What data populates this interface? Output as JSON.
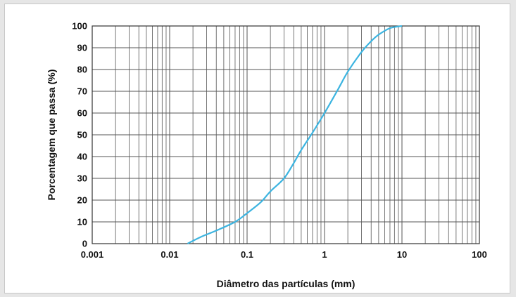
{
  "chart_data": {
    "type": "line",
    "title": "",
    "xlabel": "Diâmetro das partículas (mm)",
    "ylabel": "Porcentagem que passa (%)",
    "xscale": "log",
    "xlim": [
      0.001,
      100
    ],
    "ylim": [
      0,
      100
    ],
    "grid": true,
    "line_color": "#3cb4e0",
    "grid_color": "#555555",
    "x_ticks": [
      0.001,
      0.01,
      0.1,
      1,
      10,
      100
    ],
    "x_tick_labels": [
      "0.001",
      "0.01",
      "0.1",
      "1",
      "10",
      "100"
    ],
    "y_ticks": [
      0,
      10,
      20,
      30,
      40,
      50,
      60,
      70,
      80,
      90,
      100
    ],
    "y_tick_labels": [
      "0",
      "10",
      "20",
      "30",
      "40",
      "50",
      "60",
      "70",
      "80",
      "90",
      "100"
    ],
    "series": [
      {
        "x": [
          0.017,
          0.025,
          0.04,
          0.07,
          0.1,
          0.15,
          0.2,
          0.3,
          0.4,
          0.5,
          0.7,
          1,
          1.5,
          2,
          3,
          4,
          5,
          7,
          10
        ],
        "y": [
          0,
          3,
          6,
          10,
          14,
          19,
          24,
          30,
          37,
          43,
          51,
          60,
          71,
          79,
          88,
          93,
          96,
          99,
          100
        ]
      }
    ]
  }
}
